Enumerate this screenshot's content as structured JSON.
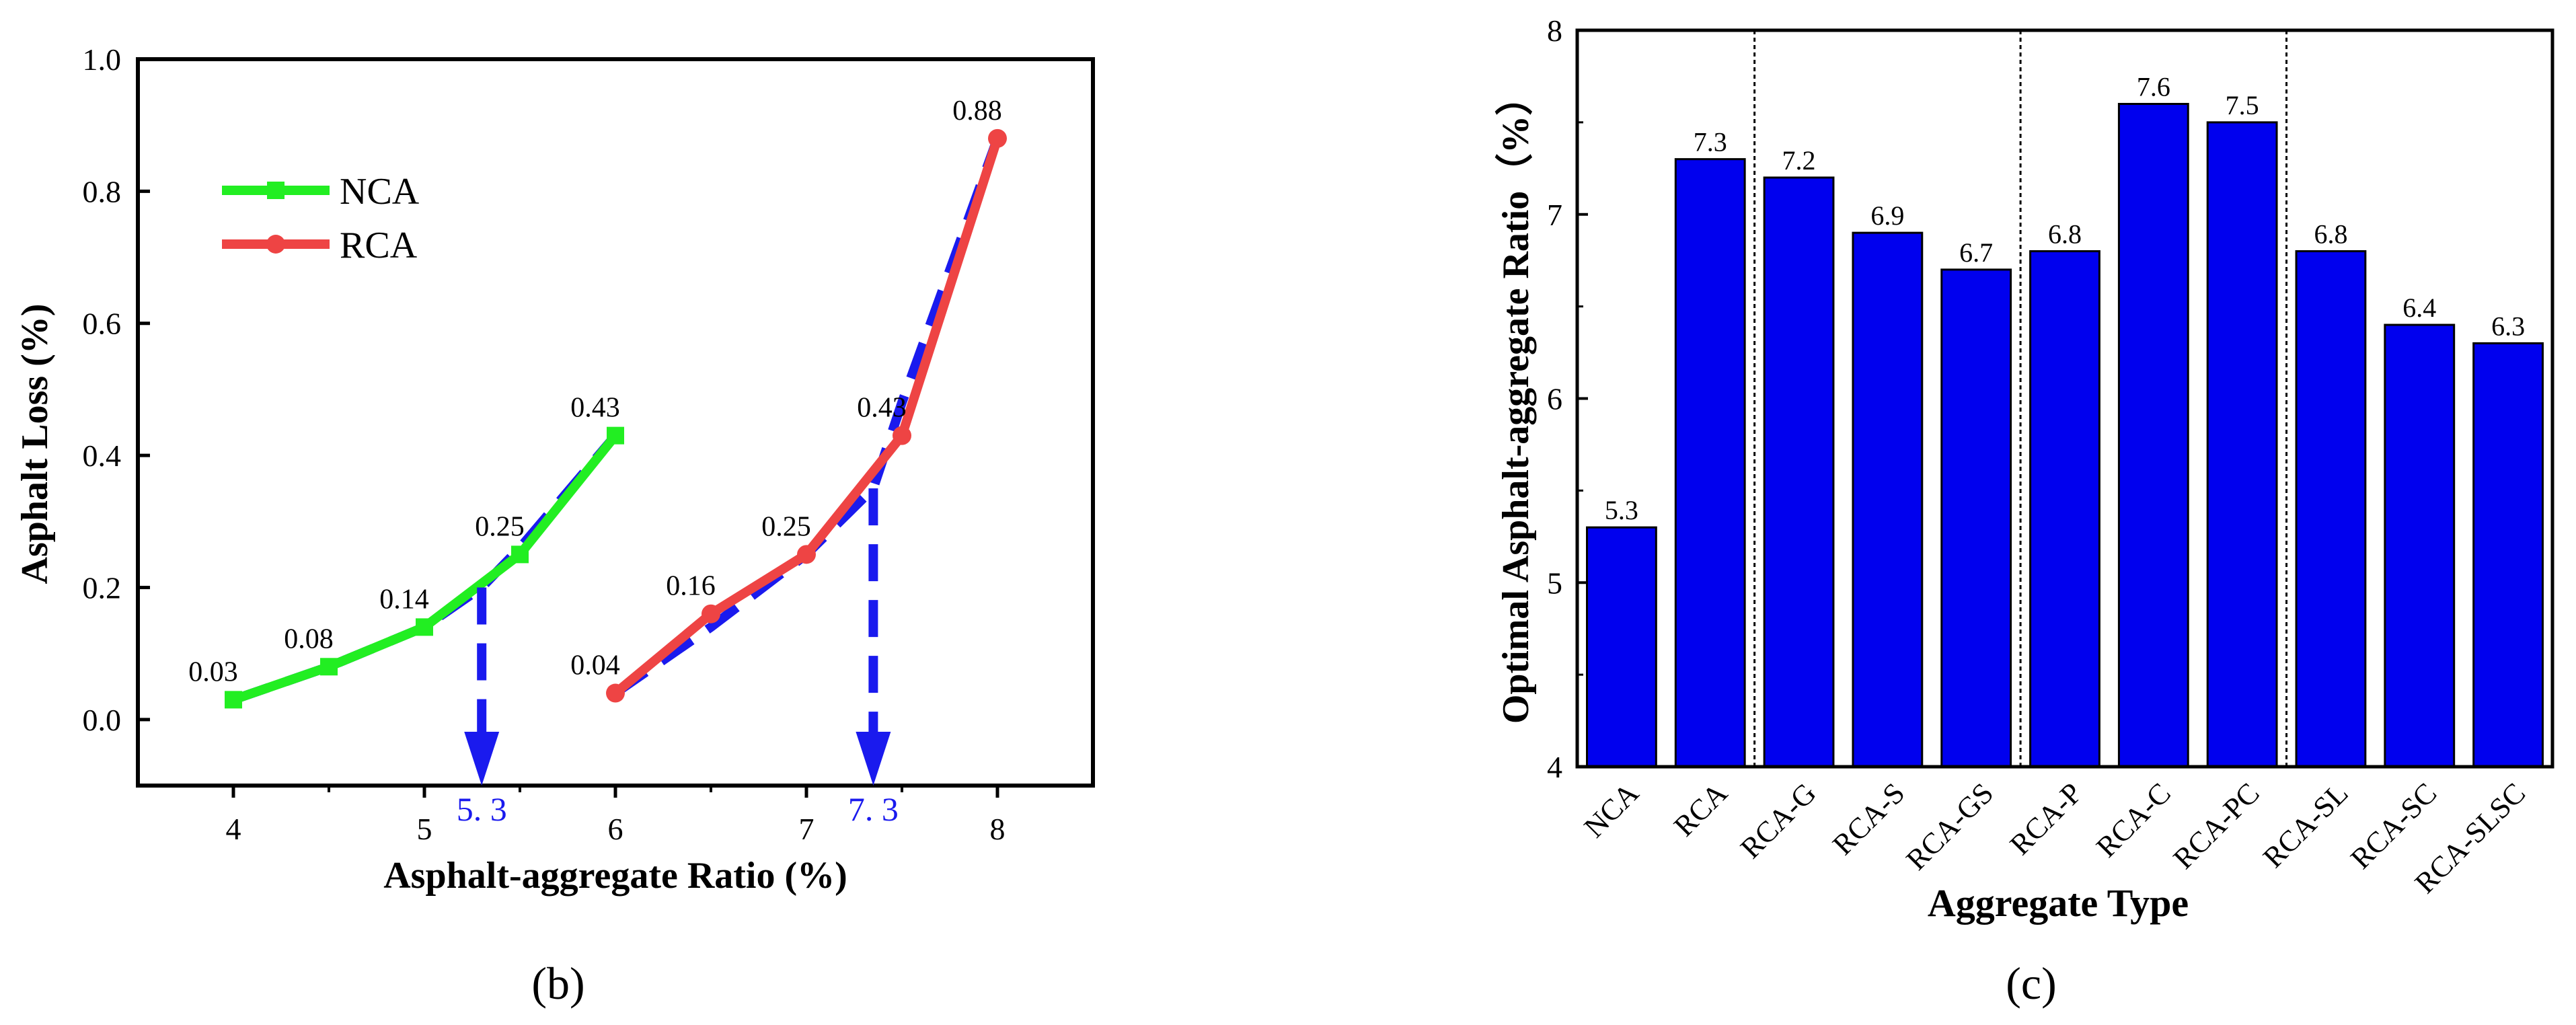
{
  "chart_data": [
    {
      "panel": "(b)",
      "type": "line",
      "xlabel": "Asphalt-aggregate Ratio (%)",
      "ylabel": "Asphalt Loss (%)",
      "xlim": [
        3.5,
        8.5
      ],
      "ylim": [
        -0.1,
        1.0
      ],
      "xticks": [
        4,
        5,
        6,
        7,
        8
      ],
      "yticks": [
        0.0,
        0.2,
        0.4,
        0.6,
        0.8,
        1.0
      ],
      "ytick_labels": [
        "0.0",
        "0.2",
        "0.4",
        "0.6",
        "0.8",
        "1.0"
      ],
      "legend": {
        "position": "top-left",
        "entries": [
          "NCA",
          "RCA"
        ]
      },
      "series": [
        {
          "name": "NCA",
          "color": "#22ee22",
          "x": [
            4,
            4.5,
            5,
            5.5,
            6
          ],
          "y": [
            0.03,
            0.08,
            0.14,
            0.25,
            0.43
          ],
          "labels": [
            "0.03",
            "0.08",
            "0.14",
            "0.25",
            "0.43"
          ]
        },
        {
          "name": "RCA",
          "color": "#ee4444",
          "x": [
            6,
            6.5,
            7,
            7.5,
            8
          ],
          "y": [
            0.04,
            0.16,
            0.25,
            0.43,
            0.88
          ],
          "labels": [
            "0.04",
            "0.16",
            "0.25",
            "0.43",
            "0.88"
          ]
        }
      ],
      "annotations": [
        {
          "text": "5. 3",
          "x": 5.3,
          "color": "#1a1aee"
        },
        {
          "text": "7. 3",
          "x": 7.35,
          "color": "#1a1aee"
        }
      ],
      "dashed_fits": [
        {
          "x": [
            4,
            4.5,
            5,
            5.3,
            5.5,
            6
          ],
          "y": [
            0.03,
            0.08,
            0.14,
            0.2,
            0.26,
            0.43
          ]
        },
        {
          "x": [
            6,
            6.5,
            7,
            7.35,
            7.5,
            8
          ],
          "y": [
            0.04,
            0.14,
            0.25,
            0.35,
            0.48,
            0.88
          ]
        }
      ],
      "arrows": [
        {
          "x": 5.3,
          "y_from": 0.2,
          "y_to": -0.1
        },
        {
          "x": 7.35,
          "y_from": 0.35,
          "y_to": -0.1
        }
      ]
    },
    {
      "panel": "(c)",
      "type": "bar",
      "xlabel": "Aggregate Type",
      "ylabel": "Optimal Asphalt-aggregate Ratio（%）",
      "ylim": [
        4,
        8
      ],
      "yticks": [
        4,
        5,
        6,
        7,
        8
      ],
      "bar_color": "#0000ee",
      "categories": [
        "NCA",
        "RCA",
        "RCA-G",
        "RCA-S",
        "RCA-GS",
        "RCA-P",
        "RCA-C",
        "RCA-PC",
        "RCA-SL",
        "RCA-SC",
        "RCA-SLSC"
      ],
      "values": [
        5.3,
        7.3,
        7.2,
        6.9,
        6.7,
        6.8,
        7.6,
        7.5,
        6.8,
        6.4,
        6.3
      ],
      "value_labels": [
        "5.3",
        "7.3",
        "7.2",
        "6.9",
        "6.7",
        "6.8",
        "7.6",
        "7.5",
        "6.8",
        "6.4",
        "6.3"
      ],
      "dividers_after_index": [
        1,
        4,
        7
      ]
    }
  ]
}
